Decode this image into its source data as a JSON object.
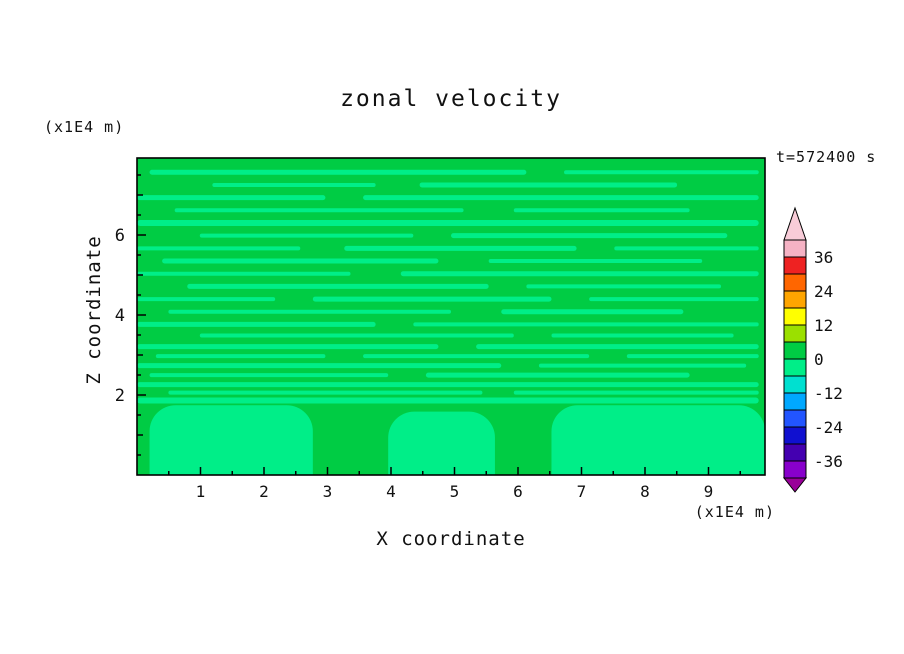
{
  "title": "zonal velocity",
  "timestamp": "t=572400 s",
  "axes": {
    "x_label": "X coordinate",
    "x_unit": "(x1E4 m)",
    "y_label": "Z coordinate",
    "y_unit": "(x1E4 m)",
    "x_ticks": [
      1,
      2,
      3,
      4,
      5,
      6,
      7,
      8,
      9
    ],
    "y_ticks": [
      2,
      4,
      6
    ],
    "x_range": [
      0,
      9.89
    ],
    "y_range": [
      0,
      7.93
    ]
  },
  "colorbar": {
    "labels": [
      36,
      24,
      12,
      0,
      -12,
      -24,
      -36
    ],
    "level_step": 6,
    "top_level": 42,
    "bottom_level": -42,
    "segments": [
      {
        "from": 36,
        "to": 42,
        "color": "#F5B2C4"
      },
      {
        "from": 30,
        "to": 36,
        "color": "#EE2222"
      },
      {
        "from": 24,
        "to": 30,
        "color": "#FF6600"
      },
      {
        "from": 18,
        "to": 24,
        "color": "#FFA500"
      },
      {
        "from": 12,
        "to": 18,
        "color": "#FFFF00"
      },
      {
        "from": 6,
        "to": 12,
        "color": "#9BE000"
      },
      {
        "from": 0,
        "to": 6,
        "color": "#00CC44"
      },
      {
        "from": -6,
        "to": 0,
        "color": "#00EE88"
      },
      {
        "from": -12,
        "to": -6,
        "color": "#00E0D0"
      },
      {
        "from": -18,
        "to": -12,
        "color": "#00A8FF"
      },
      {
        "from": -24,
        "to": -18,
        "color": "#2255FF"
      },
      {
        "from": -30,
        "to": -24,
        "color": "#1010D0"
      },
      {
        "from": -36,
        "to": -30,
        "color": "#4400B0"
      },
      {
        "from": -42,
        "to": -36,
        "color": "#8800CC"
      }
    ],
    "top_arrow_color": "#F8CCD8",
    "bottom_arrow_color": "#990099"
  },
  "chart_data": {
    "type": "filled_contour",
    "field_name": "zonal velocity",
    "time_label": "t=572400 s",
    "x": {
      "label": "X coordinate",
      "unit": "(x1E4 m)",
      "range": [
        0,
        9.89
      ],
      "ticks": [
        1,
        2,
        3,
        4,
        5,
        6,
        7,
        8,
        9
      ]
    },
    "z": {
      "label": "Z coordinate",
      "unit": "(x1E4 m)",
      "range": [
        0,
        7.93
      ],
      "ticks": [
        2,
        4,
        6
      ]
    },
    "contour_interval": 6,
    "colorbar_labels": [
      36,
      24,
      12,
      0,
      -12,
      -24,
      -36
    ],
    "dominant_band": {
      "range": [
        0,
        6
      ],
      "color": "#00CC44"
    },
    "secondary_band": {
      "range": [
        -6,
        0
      ],
      "color": "#00EE88"
    },
    "note": "Field values lie almost entirely between -6 and 6 m/s: dominant green band 0..6 with thin horizontal light-green streaks (-6..0) throughout, and larger light-green pools below z=2.",
    "streaks": [
      [
        0.045,
        0.02,
        0.62,
        5
      ],
      [
        0.045,
        0.68,
        0.99,
        4
      ],
      [
        0.085,
        0.12,
        0.38,
        4
      ],
      [
        0.085,
        0.45,
        0.86,
        5
      ],
      [
        0.125,
        0.0,
        0.3,
        5
      ],
      [
        0.125,
        0.36,
        0.99,
        5
      ],
      [
        0.165,
        0.06,
        0.52,
        4
      ],
      [
        0.165,
        0.6,
        0.88,
        4
      ],
      [
        0.205,
        0.0,
        0.99,
        6
      ],
      [
        0.245,
        0.1,
        0.44,
        4
      ],
      [
        0.245,
        0.5,
        0.94,
        5
      ],
      [
        0.285,
        0.0,
        0.26,
        4
      ],
      [
        0.285,
        0.33,
        0.7,
        5
      ],
      [
        0.285,
        0.76,
        0.99,
        4
      ],
      [
        0.325,
        0.04,
        0.48,
        5
      ],
      [
        0.325,
        0.56,
        0.9,
        4
      ],
      [
        0.365,
        0.0,
        0.34,
        4
      ],
      [
        0.365,
        0.42,
        0.99,
        5
      ],
      [
        0.405,
        0.08,
        0.56,
        5
      ],
      [
        0.405,
        0.62,
        0.93,
        4
      ],
      [
        0.445,
        0.0,
        0.22,
        4
      ],
      [
        0.445,
        0.28,
        0.66,
        5
      ],
      [
        0.445,
        0.72,
        0.99,
        4
      ],
      [
        0.485,
        0.05,
        0.5,
        4
      ],
      [
        0.485,
        0.58,
        0.87,
        5
      ],
      [
        0.525,
        0.0,
        0.38,
        5
      ],
      [
        0.525,
        0.44,
        0.99,
        4
      ],
      [
        0.56,
        0.1,
        0.6,
        4
      ],
      [
        0.56,
        0.66,
        0.95,
        4
      ],
      [
        0.595,
        0.0,
        0.48,
        5
      ],
      [
        0.595,
        0.54,
        0.99,
        5
      ],
      [
        0.625,
        0.03,
        0.3,
        4
      ],
      [
        0.625,
        0.36,
        0.72,
        4
      ],
      [
        0.625,
        0.78,
        0.99,
        4
      ],
      [
        0.655,
        0.0,
        0.58,
        5
      ],
      [
        0.655,
        0.64,
        0.97,
        4
      ],
      [
        0.685,
        0.02,
        0.4,
        4
      ],
      [
        0.685,
        0.46,
        0.88,
        5
      ],
      [
        0.715,
        0.0,
        0.99,
        5
      ],
      [
        0.74,
        0.05,
        0.55,
        4
      ],
      [
        0.74,
        0.6,
        0.99,
        4
      ],
      [
        0.765,
        0.0,
        0.99,
        6
      ]
    ],
    "bottom_blobs": [
      {
        "x1": 0.02,
        "x2": 0.28,
        "top": 0.78
      },
      {
        "x1": 0.4,
        "x2": 0.57,
        "top": 0.8
      },
      {
        "x1": 0.66,
        "x2": 1.0,
        "top": 0.78
      }
    ]
  }
}
